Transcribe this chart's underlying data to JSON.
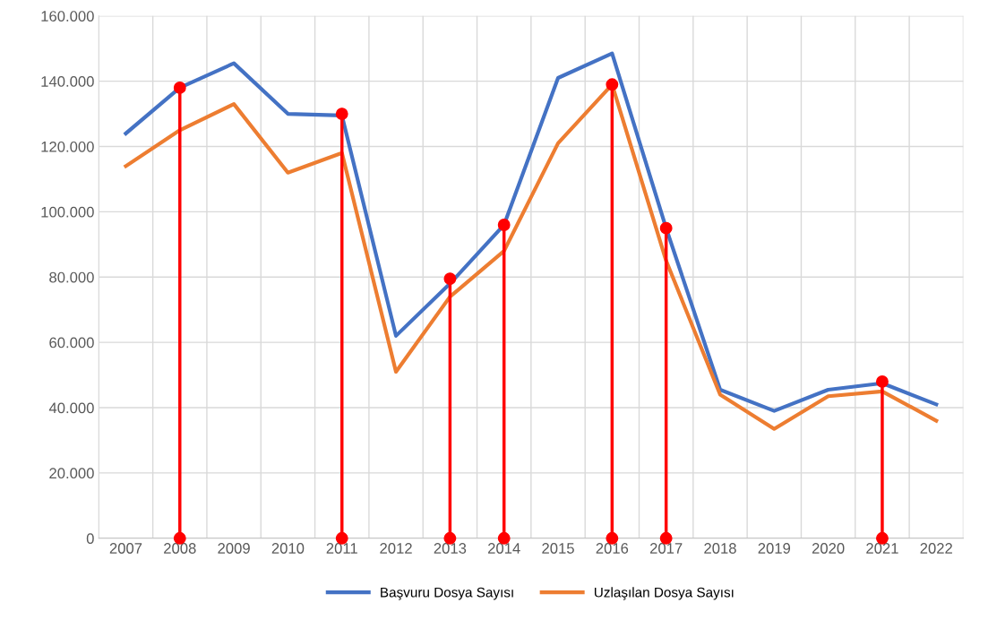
{
  "chart_data": {
    "type": "line",
    "categories": [
      "2007",
      "2008",
      "2009",
      "2010",
      "2011",
      "2012",
      "2013",
      "2014",
      "2015",
      "2016",
      "2017",
      "2018",
      "2019",
      "2020",
      "2021",
      "2022"
    ],
    "series": [
      {
        "name": "Başvuru Dosya Sayısı",
        "color": "#4472c4",
        "values": [
          124000,
          138000,
          145500,
          130000,
          129500,
          62000,
          78000,
          96000,
          141000,
          148500,
          95000,
          45500,
          39000,
          45500,
          47500,
          41000
        ]
      },
      {
        "name": "Uzlaşılan Dosya Sayısı",
        "color": "#ed7d31",
        "values": [
          114000,
          125000,
          133000,
          112000,
          118000,
          51000,
          74000,
          88000,
          121000,
          139000,
          85000,
          44000,
          33500,
          43500,
          45000,
          36000
        ]
      },
      {
        "type": "lollipop",
        "marker": "circle",
        "color": "#ff0000",
        "values": [
          null,
          138000,
          null,
          null,
          130000,
          null,
          79500,
          96000,
          null,
          139000,
          95000,
          null,
          null,
          null,
          48000,
          null
        ]
      },
      {
        "type": "scatter",
        "marker": "circle",
        "color": "#ff0000",
        "values": [
          null,
          0,
          null,
          null,
          0,
          null,
          0,
          0,
          null,
          0,
          0,
          null,
          null,
          null,
          0,
          null
        ]
      }
    ],
    "ylim": [
      0,
      160000
    ],
    "yticks": [
      {
        "value": 0,
        "label": "0"
      },
      {
        "value": 20000,
        "label": "20.000"
      },
      {
        "value": 40000,
        "label": "40.000"
      },
      {
        "value": 60000,
        "label": "60.000"
      },
      {
        "value": 80000,
        "label": "80.000"
      },
      {
        "value": 100000,
        "label": "100.000"
      },
      {
        "value": 120000,
        "label": "120.000"
      },
      {
        "value": 140000,
        "label": "140.000"
      },
      {
        "value": 160000,
        "label": "160.000"
      }
    ],
    "grid": true,
    "legend": "bottom",
    "marker": "none",
    "line_style": "solid"
  }
}
